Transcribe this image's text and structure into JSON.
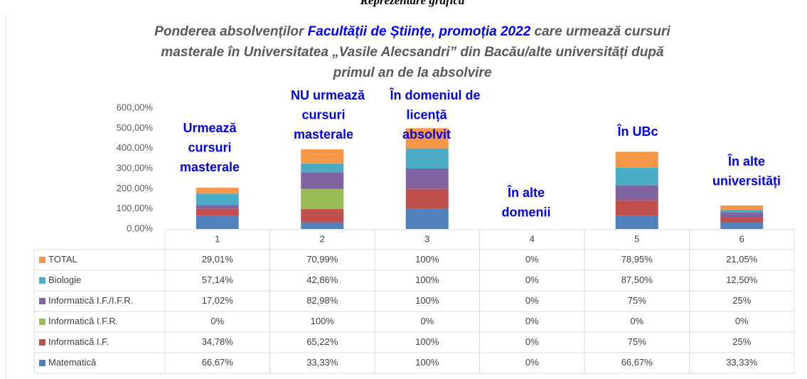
{
  "chart_data": {
    "type": "bar",
    "stacked": true,
    "heading": "Reprezentare grafică",
    "title_lines": [
      [
        {
          "text": "Ponderea absolvenților ",
          "color": "#595959"
        },
        {
          "text": "Facultății de Științe, promoția 2022",
          "color": "#0000ff"
        },
        {
          "text": " care urmează cursuri",
          "color": "#595959"
        }
      ],
      [
        {
          "text": "masterale în Universitatea „Vasile Alecsandri” din Bacău/alte universități după",
          "color": "#595959"
        }
      ],
      [
        {
          "text": "primul an de la absolvire",
          "color": "#595959"
        }
      ]
    ],
    "annotations": [
      {
        "lines": [
          "Urmează",
          "cursuri",
          "masterale"
        ]
      },
      {
        "lines": [
          "NU urmează",
          "cursuri",
          "masterale"
        ]
      },
      {
        "lines": [
          "În domeniul de",
          "licență",
          "absolvit"
        ]
      },
      {
        "lines": [
          "În alte",
          "domenii"
        ]
      },
      {
        "lines": [
          "În UBc"
        ]
      },
      {
        "lines": [
          "În alte",
          "universități"
        ]
      }
    ],
    "categories": [
      "1",
      "2",
      "3",
      "4",
      "5",
      "6"
    ],
    "ylim": [
      0,
      600
    ],
    "yticks": [
      {
        "value": 0,
        "label": "0,00%"
      },
      {
        "value": 100,
        "label": "100,00%"
      },
      {
        "value": 200,
        "label": "200,00%"
      },
      {
        "value": 300,
        "label": "300,00%"
      },
      {
        "value": 400,
        "label": "400,00%"
      },
      {
        "value": 500,
        "label": "500,00%"
      },
      {
        "value": 600,
        "label": "600,00%"
      }
    ],
    "series": [
      {
        "name": "Matematică",
        "color": "#4f81bd",
        "values": [
          66.67,
          33.33,
          100,
          0,
          66.67,
          33.33
        ],
        "value_labels": [
          "66,67%",
          "33,33%",
          "100%",
          "0%",
          "66,67%",
          "33,33%"
        ]
      },
      {
        "name": "Informatică I.F.",
        "color": "#c0504d",
        "values": [
          34.78,
          65.22,
          100,
          0,
          75,
          25
        ],
        "value_labels": [
          "34,78%",
          "65,22%",
          "100%",
          "0%",
          "75%",
          "25%"
        ]
      },
      {
        "name": "Informatică I.F.R.",
        "color": "#9bbb59",
        "values": [
          0,
          100,
          0,
          0,
          0,
          0
        ],
        "value_labels": [
          "0%",
          "100%",
          "0%",
          "0%",
          "0%",
          "0%"
        ]
      },
      {
        "name": "Informatică I.F./I.F.R.",
        "color": "#8064a2",
        "values": [
          17.02,
          82.98,
          100,
          0,
          75,
          25
        ],
        "value_labels": [
          "17,02%",
          "82,98%",
          "100%",
          "0%",
          "75%",
          "25%"
        ]
      },
      {
        "name": "Biologie",
        "color": "#4bacc6",
        "values": [
          57.14,
          42.86,
          100,
          0,
          87.5,
          12.5
        ],
        "value_labels": [
          "57,14%",
          "42,86%",
          "100%",
          "0%",
          "87,50%",
          "12,50%"
        ]
      },
      {
        "name": "TOTAL",
        "color": "#f79646",
        "values": [
          29.01,
          70.99,
          100,
          0,
          78.95,
          21.05
        ],
        "value_labels": [
          "29,01%",
          "70,99%",
          "100%",
          "0%",
          "78,95%",
          "21,05%"
        ]
      }
    ]
  }
}
